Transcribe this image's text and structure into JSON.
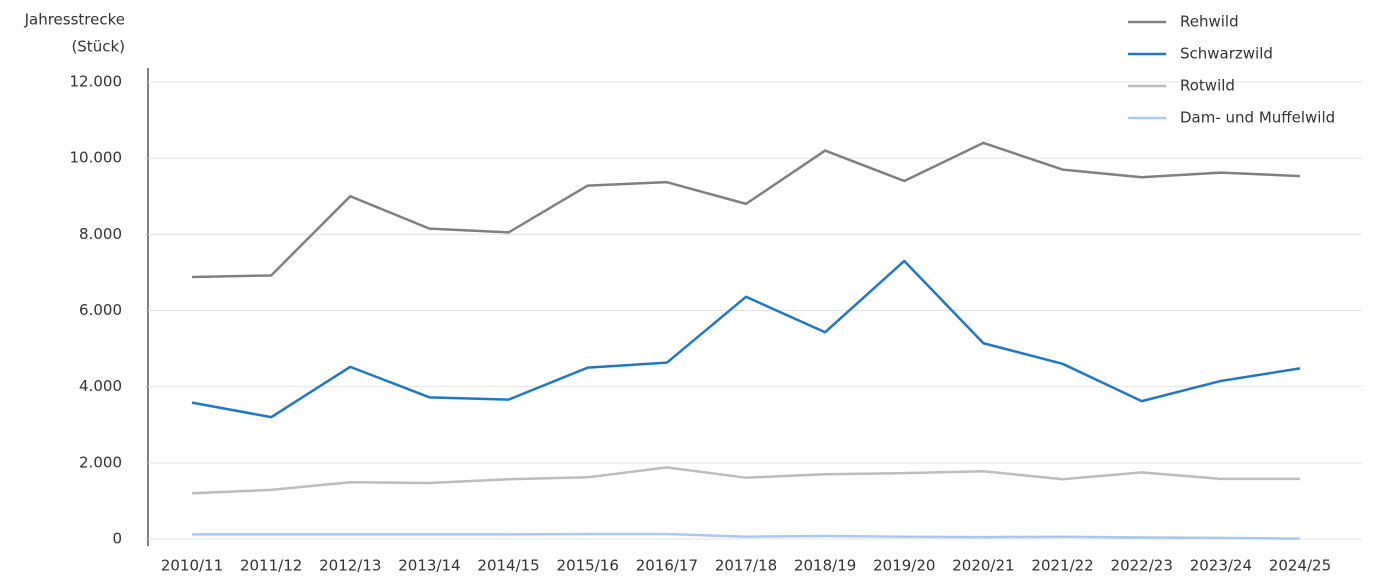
{
  "chart_data": {
    "type": "line",
    "ylabel": [
      "Jahresstrecke",
      "(Stück)"
    ],
    "categories": [
      "2010/11",
      "2011/12",
      "2012/13",
      "2013/14",
      "2014/15",
      "2015/16",
      "2016/17",
      "2017/18",
      "2018/19",
      "2019/20",
      "2020/21",
      "2021/22",
      "2022/23",
      "2023/24",
      "2024/25"
    ],
    "series": [
      {
        "name": "Rehwild",
        "color": "#808080",
        "values": [
          6880,
          6920,
          9000,
          8150,
          8050,
          9280,
          9370,
          8800,
          10200,
          9400,
          10400,
          9700,
          9500,
          9620,
          9530
        ]
      },
      {
        "name": "Schwarzwild",
        "color": "#1f78c1",
        "values": [
          3580,
          3200,
          4520,
          3720,
          3660,
          4500,
          4630,
          6360,
          5430,
          7300,
          5140,
          4600,
          3620,
          4150,
          4480
        ]
      },
      {
        "name": "Rotwild",
        "color": "#bdbdbd",
        "values": [
          1200,
          1290,
          1490,
          1470,
          1570,
          1620,
          1880,
          1610,
          1700,
          1730,
          1780,
          1570,
          1750,
          1580,
          1580
        ]
      },
      {
        "name": "Dam- und Muffelwild",
        "color": "#a9c8ef",
        "values": [
          120,
          120,
          120,
          120,
          120,
          130,
          130,
          60,
          80,
          60,
          50,
          60,
          40,
          30,
          10
        ]
      }
    ],
    "ylim": [
      0,
      12000
    ],
    "yticks": [
      0,
      {
        "value": 2000,
        "label": "2.000"
      },
      {
        "value": 4000,
        "label": "4.000"
      },
      {
        "value": 6000,
        "label": "6.000"
      },
      {
        "value": 8000,
        "label": "8.000"
      },
      {
        "value": 10000,
        "label": "10.000"
      },
      {
        "value": 12000,
        "label": "12.000"
      }
    ],
    "grid": true
  }
}
